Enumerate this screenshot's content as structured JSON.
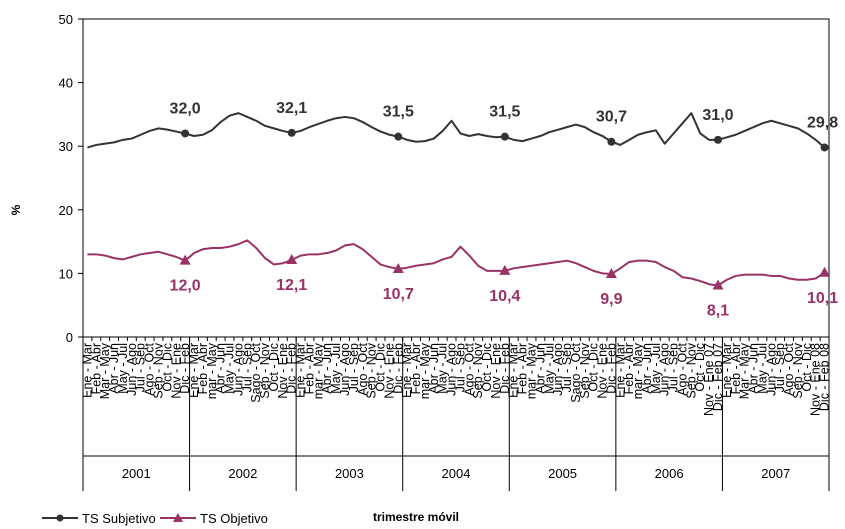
{
  "chart_data": {
    "type": "line",
    "ylabel": "%",
    "xlabel": "trimestre móvil",
    "ylim": [
      0,
      50
    ],
    "y_ticks": [
      0,
      10,
      20,
      30,
      40,
      50
    ],
    "grid": false,
    "legend_position": "bottom-left",
    "years": [
      "2001",
      "2002",
      "2003",
      "2004",
      "2005",
      "2006",
      "2007"
    ],
    "categories": [
      "Ene - Mar",
      "Feb - Abr",
      "Mar - May",
      "Abr - Jun",
      "May - Jul",
      "Jun - Ago",
      "Jul - Sep",
      "Ago - Oct",
      "Sep - Nov",
      "Oct - Dic",
      "Nov - Ene",
      "Dic - Feb",
      "Ene - Mar",
      "Feb - Abr",
      "mar - May",
      "Abr - Jun",
      "May - Jul",
      "Jun - Ago",
      "Jul - Sep",
      "Sago - Oct",
      "Sep - Nov",
      "Oct - Dic",
      "Nov - Ene",
      "Dic - Feb",
      "Ene - Mar",
      "Feb - Abr",
      "mar - May",
      "Abr - Jun",
      "May - Jul",
      "Jun - Ago",
      "Jul - Sep",
      "Ago - Oct",
      "Sep - Nov",
      "Oct - Dic",
      "Nov - Ene",
      "Dic - Feb",
      "Ene - Mar",
      "Feb - Abr",
      "mar - May",
      "Abr - Jun",
      "May - Jul",
      "Jun - Ago",
      "Jul - Sep",
      "Ago - Oct",
      "Sep - Nov",
      "Oct - Dic",
      "Nov - Ene",
      "Dic - Feb",
      "Ene - Mar",
      "Feb - Abr",
      "mar - May",
      "Abr - Jun",
      "May - Jul",
      "Jun - Ago",
      "Jul - Sep",
      "Sago - Oct",
      "Sep - Nov",
      "Oct - Dic",
      "Nov - Ene",
      "Dic - Feb",
      "Ene - Mar",
      "Feb - Abr",
      "mar - May",
      "Abr - Jun",
      "May - Jul",
      "Jun - Ago",
      "Jul - Sep",
      "Ago - Oct",
      "Sep - Nov",
      "Oct - Dic",
      "Nov - Ene 07",
      "Dic - Feb 07",
      "Ene - Mar",
      "Feb - Abr",
      "Mar - May",
      "Abr - Jun",
      "May - Jul",
      "Jun - Ago",
      "Jul - Sep",
      "Ago - Oct",
      "Sep - Nov",
      "Oct - Dic",
      "Nov - Ene 08",
      "Dic - Feb 08"
    ],
    "series": [
      {
        "name": "TS Subjetivo",
        "color": "#333333",
        "marker": "circle",
        "values": [
          29.8,
          30.2,
          30.4,
          30.6,
          31.0,
          31.2,
          31.8,
          32.4,
          32.8,
          32.6,
          32.3,
          32.0,
          31.6,
          31.8,
          32.5,
          33.8,
          34.8,
          35.2,
          34.6,
          34.0,
          33.2,
          32.8,
          32.4,
          32.1,
          32.4,
          33.0,
          33.5,
          34.0,
          34.4,
          34.6,
          34.4,
          33.8,
          33.0,
          32.3,
          31.8,
          31.5,
          31.0,
          30.7,
          30.8,
          31.2,
          32.4,
          34.0,
          32.0,
          31.6,
          31.9,
          31.6,
          31.4,
          31.5,
          31.0,
          30.8,
          31.2,
          31.6,
          32.2,
          32.6,
          33.0,
          33.4,
          33.0,
          32.2,
          31.6,
          30.7,
          30.2,
          31.0,
          31.8,
          32.2,
          32.5,
          30.4,
          32.0,
          33.6,
          35.2,
          32.0,
          31.0,
          31.0,
          31.4,
          31.8,
          32.4,
          33.0,
          33.6,
          34.0,
          33.6,
          33.2,
          32.8,
          32.0,
          31.0,
          29.8
        ],
        "labeled_values": [
          {
            "index": 11,
            "label": "32,0"
          },
          {
            "index": 23,
            "label": "32,1"
          },
          {
            "index": 35,
            "label": "31,5"
          },
          {
            "index": 47,
            "label": "31,5"
          },
          {
            "index": 59,
            "label": "30,7"
          },
          {
            "index": 71,
            "label": "31,0"
          },
          {
            "index": 83,
            "label": "29,8"
          }
        ]
      },
      {
        "name": "TS Objetivo",
        "color": "#993366",
        "marker": "triangle",
        "values": [
          13.0,
          13.0,
          12.8,
          12.4,
          12.2,
          12.6,
          13.0,
          13.2,
          13.4,
          13.0,
          12.6,
          12.0,
          13.2,
          13.8,
          14.0,
          14.0,
          14.2,
          14.6,
          15.2,
          14.0,
          12.4,
          11.4,
          11.6,
          12.1,
          12.8,
          13.0,
          13.0,
          13.2,
          13.6,
          14.4,
          14.6,
          13.8,
          12.6,
          11.4,
          11.0,
          10.7,
          10.9,
          11.2,
          11.4,
          11.6,
          12.2,
          12.6,
          14.2,
          12.8,
          11.2,
          10.4,
          10.4,
          10.4,
          10.8,
          11.0,
          11.2,
          11.4,
          11.6,
          11.8,
          12.0,
          11.6,
          11.0,
          10.4,
          10.0,
          9.9,
          10.8,
          11.8,
          12.0,
          12.0,
          11.8,
          11.0,
          10.4,
          9.4,
          9.2,
          8.8,
          8.3,
          8.1,
          9.0,
          9.6,
          9.8,
          9.8,
          9.8,
          9.6,
          9.6,
          9.2,
          9.0,
          9.0,
          9.2,
          10.1
        ],
        "labeled_values": [
          {
            "index": 11,
            "label": "12,0"
          },
          {
            "index": 23,
            "label": "12,1"
          },
          {
            "index": 35,
            "label": "10,7"
          },
          {
            "index": 47,
            "label": "10,4"
          },
          {
            "index": 59,
            "label": "9,9"
          },
          {
            "index": 71,
            "label": "8,1"
          },
          {
            "index": 83,
            "label": "10,1"
          }
        ]
      }
    ]
  }
}
